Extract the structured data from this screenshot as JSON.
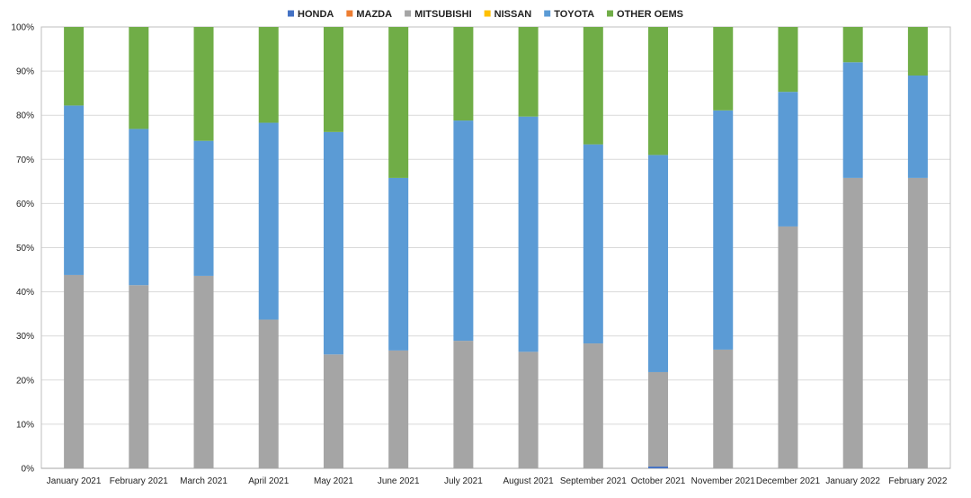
{
  "chart_data": {
    "type": "bar",
    "stacked": true,
    "percent": true,
    "categories": [
      "January 2021",
      "February 2021",
      "March 2021",
      "April 2021",
      "May 2021",
      "June 2021",
      "July 2021",
      "August 2021",
      "September 2021",
      "October 2021",
      "November 2021",
      "December 2021",
      "January 2022",
      "February 2022"
    ],
    "series": [
      {
        "name": "HONDA",
        "color": "#4472C4",
        "values": [
          0,
          0,
          0,
          0,
          0,
          0,
          0,
          0,
          0,
          0.4,
          0,
          0,
          0,
          0
        ]
      },
      {
        "name": "MAZDA",
        "color": "#ED7D31",
        "values": [
          0,
          0,
          0,
          0,
          0,
          0,
          0,
          0,
          0,
          0,
          0,
          0,
          0,
          0
        ]
      },
      {
        "name": "MITSUBISHI",
        "color": "#A5A5A5",
        "values": [
          43.8,
          41.5,
          43.6,
          33.7,
          25.8,
          26.7,
          28.9,
          26.4,
          28.3,
          21.4,
          26.9,
          54.8,
          65.8,
          65.8
        ]
      },
      {
        "name": "NISSAN",
        "color": "#FFC000",
        "values": [
          0,
          0,
          0,
          0,
          0,
          0,
          0,
          0,
          0,
          0,
          0,
          0,
          0,
          0
        ]
      },
      {
        "name": "TOYOTA",
        "color": "#5B9BD5",
        "values": [
          38.4,
          35.4,
          30.6,
          44.6,
          50.4,
          39.1,
          49.9,
          53.3,
          45.1,
          49.2,
          54.2,
          30.5,
          26.2,
          23.2
        ]
      },
      {
        "name": "OTHER OEMS",
        "color": "#70AD47",
        "values": [
          17.8,
          23.1,
          25.8,
          21.7,
          23.8,
          34.2,
          21.2,
          20.3,
          26.6,
          29.0,
          18.9,
          14.7,
          8.0,
          11.0
        ]
      }
    ],
    "ylim": [
      0,
      100
    ],
    "yticks": [
      "0%",
      "10%",
      "20%",
      "30%",
      "40%",
      "50%",
      "60%",
      "70%",
      "80%",
      "90%",
      "100%"
    ],
    "grid": true,
    "legend_position": "top"
  }
}
